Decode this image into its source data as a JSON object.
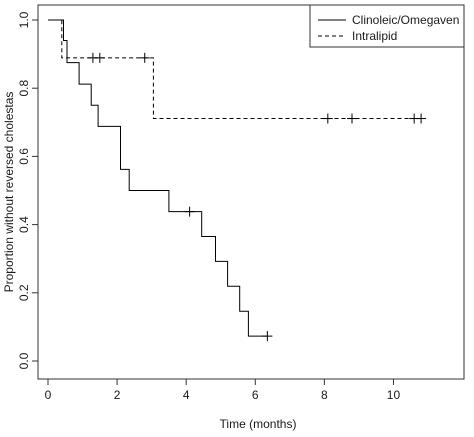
{
  "chart_data": {
    "type": "line",
    "title": "",
    "xlabel": "Time (months)",
    "ylabel": "Proportion without reversed cholestas",
    "xlim": [
      0,
      11
    ],
    "ylim": [
      0,
      1.0
    ],
    "xticks": [
      0,
      2,
      4,
      6,
      8,
      10
    ],
    "yticks": [
      0.0,
      0.2,
      0.4,
      0.6,
      0.8,
      1.0
    ],
    "tick_labels_x": [
      "0",
      "2",
      "4",
      "6",
      "8",
      "10"
    ],
    "tick_labels_y": [
      "0.0",
      "0.2",
      "0.4",
      "0.6",
      "0.8",
      "1.0"
    ],
    "grid": false,
    "legend_position": "top-right",
    "series": [
      {
        "name": "Clinoleic/Omegaven",
        "line_style": "solid",
        "color": "#000000",
        "step_points": [
          [
            0,
            1.0
          ],
          [
            0.45,
            1.0
          ],
          [
            0.45,
            0.94
          ],
          [
            0.55,
            0.94
          ],
          [
            0.55,
            0.875
          ],
          [
            0.9,
            0.875
          ],
          [
            0.9,
            0.812
          ],
          [
            1.25,
            0.812
          ],
          [
            1.25,
            0.75
          ],
          [
            1.45,
            0.75
          ],
          [
            1.45,
            0.688
          ],
          [
            2.1,
            0.688
          ],
          [
            2.1,
            0.562
          ],
          [
            2.35,
            0.562
          ],
          [
            2.35,
            0.5
          ],
          [
            3.5,
            0.5
          ],
          [
            3.5,
            0.438
          ],
          [
            4.45,
            0.438
          ],
          [
            4.45,
            0.365
          ],
          [
            4.85,
            0.365
          ],
          [
            4.85,
            0.292
          ],
          [
            5.2,
            0.292
          ],
          [
            5.2,
            0.219
          ],
          [
            5.55,
            0.219
          ],
          [
            5.55,
            0.146
          ],
          [
            5.8,
            0.146
          ],
          [
            5.8,
            0.073
          ],
          [
            6.35,
            0.073
          ]
        ],
        "censored": [
          [
            4.1,
            0.438
          ],
          [
            6.35,
            0.073
          ]
        ]
      },
      {
        "name": "Intralipid",
        "line_style": "dashed",
        "color": "#000000",
        "step_points": [
          [
            0,
            1.0
          ],
          [
            0.4,
            1.0
          ],
          [
            0.4,
            0.889
          ],
          [
            3.05,
            0.889
          ],
          [
            3.05,
            0.711
          ],
          [
            10.85,
            0.711
          ]
        ],
        "censored": [
          [
            1.3,
            0.889
          ],
          [
            1.5,
            0.889
          ],
          [
            2.8,
            0.889
          ],
          [
            8.1,
            0.711
          ],
          [
            8.8,
            0.711
          ],
          [
            10.6,
            0.711
          ],
          [
            10.8,
            0.711
          ]
        ]
      }
    ]
  }
}
